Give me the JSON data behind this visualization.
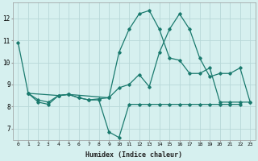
{
  "xlabel": "Humidex (Indice chaleur)",
  "bg_color": "#d6f0ef",
  "line_color": "#1a7a6e",
  "grid_color": "#b8d8d8",
  "xlim": [
    -0.5,
    23.5
  ],
  "ylim": [
    6.5,
    12.7
  ],
  "yticks": [
    7,
    8,
    9,
    10,
    11,
    12
  ],
  "xticks": [
    0,
    1,
    2,
    3,
    4,
    5,
    6,
    7,
    8,
    9,
    10,
    11,
    12,
    13,
    14,
    15,
    16,
    17,
    18,
    19,
    20,
    21,
    22,
    23
  ],
  "line1_x": [
    0,
    1,
    2,
    3,
    4,
    5,
    6,
    7,
    8,
    9,
    10,
    11,
    12,
    13,
    14,
    15,
    16,
    17,
    18,
    19,
    20,
    21,
    22,
    23
  ],
  "line1_y": [
    10.9,
    8.6,
    8.2,
    8.1,
    8.5,
    8.55,
    8.4,
    8.3,
    8.35,
    8.4,
    10.45,
    11.5,
    12.2,
    12.35,
    11.5,
    10.2,
    10.1,
    9.5,
    9.5,
    9.75,
    8.2,
    8.2,
    8.2,
    8.2
  ],
  "line2_x": [
    1,
    2,
    3,
    4,
    5,
    6,
    7,
    8,
    9,
    10,
    11,
    12,
    13,
    14,
    15,
    16,
    17,
    18,
    19,
    20,
    21,
    22
  ],
  "line2_y": [
    8.6,
    8.3,
    8.2,
    8.5,
    8.55,
    8.4,
    8.3,
    8.3,
    6.85,
    6.6,
    8.1,
    8.1,
    8.1,
    8.1,
    8.1,
    8.1,
    8.1,
    8.1,
    8.1,
    8.1,
    8.1,
    8.1
  ],
  "line3_x": [
    1,
    4,
    5,
    9,
    10,
    11,
    12,
    13,
    14,
    15,
    16,
    17,
    18,
    19,
    20,
    21,
    22,
    23
  ],
  "line3_y": [
    8.6,
    8.5,
    8.55,
    8.4,
    8.85,
    9.0,
    9.45,
    8.9,
    10.45,
    11.5,
    12.2,
    11.5,
    10.2,
    9.35,
    9.5,
    9.5,
    9.75,
    8.2
  ]
}
